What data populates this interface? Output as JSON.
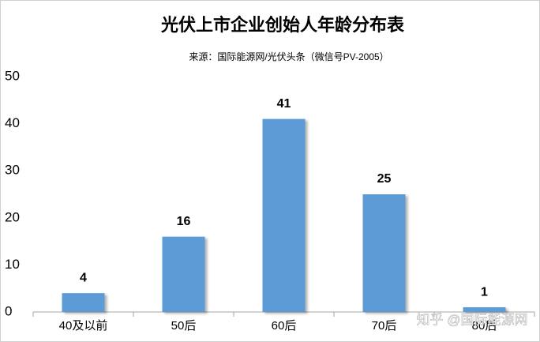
{
  "chart_data": {
    "type": "bar",
    "title": "光伏上市企业创始人年龄分布表",
    "subtitle": "来源：国际能源网/光伏头条（微信号PV-2005）",
    "categories": [
      "40及以前",
      "50后",
      "60后",
      "70后",
      "80后"
    ],
    "values": [
      4,
      16,
      41,
      25,
      1
    ],
    "color": "#5b9bd5",
    "ylim": [
      0,
      50
    ],
    "yticks": [
      0,
      10,
      20,
      30,
      40,
      50
    ],
    "grid": false,
    "watermark": "知乎 @国际能源网"
  }
}
